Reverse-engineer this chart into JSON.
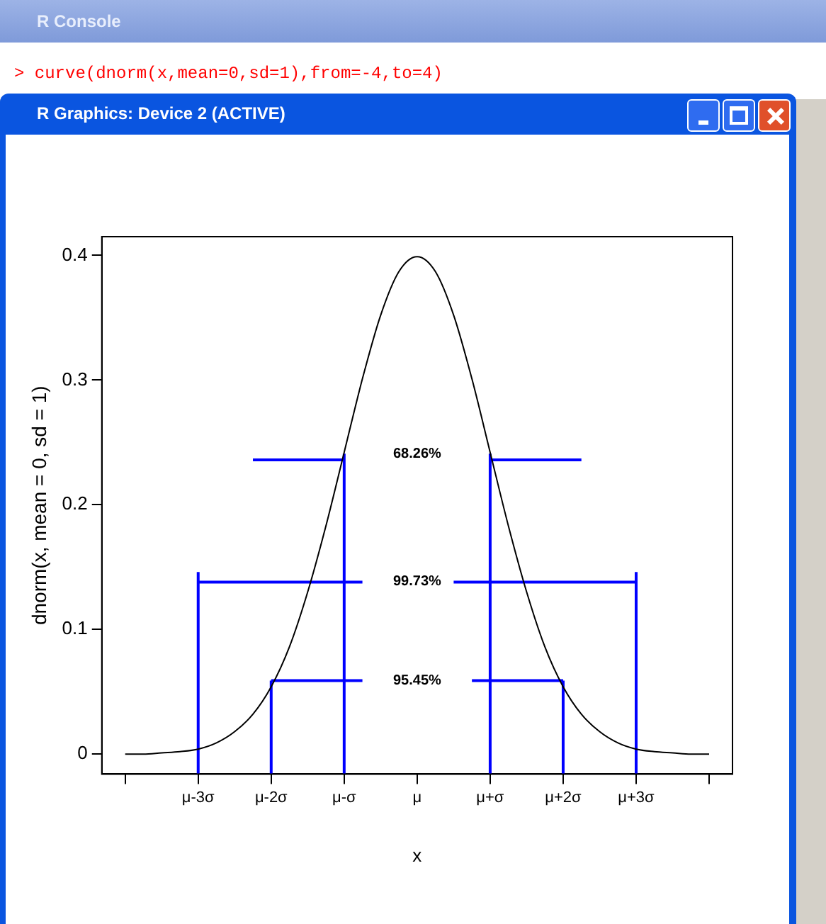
{
  "chart_data": {
    "type": "line",
    "xlabel": "x",
    "ylabel": "dnorm(x, mean = 0, sd = 1)",
    "categories": [
      null,
      null,
      null,
      null,
      "μ-3σ",
      null,
      null,
      null,
      "μ-2σ",
      null,
      null,
      null,
      "μ-σ",
      null,
      null,
      null,
      "μ",
      null,
      null,
      null,
      "μ+σ",
      null,
      null,
      null,
      "μ+2σ",
      null,
      null,
      null,
      "μ+3σ",
      null,
      null,
      null,
      null
    ],
    "ylim": [
      -0.016,
      0.415
    ],
    "yticks": [
      0,
      0.1,
      0.2,
      0.3,
      0.4
    ],
    "grid": false,
    "legend": false,
    "marker": "none",
    "line_style": "solid",
    "series": [
      {
        "color": "#000000",
        "values": [
          0,
          0,
          0.001,
          0.002,
          0.004,
          0.009,
          0.018,
          0.032,
          0.054,
          0.086,
          0.13,
          0.183,
          0.242,
          0.301,
          0.352,
          0.387,
          0.399,
          0.387,
          0.352,
          0.301,
          0.242,
          0.183,
          0.13,
          0.086,
          0.054,
          0.032,
          0.018,
          0.009,
          0.004,
          0.002,
          0.001,
          0,
          0
        ]
      },
      {
        "color": "#0000ff",
        "x": [
          "μ-3σ",
          "μ-3σ"
        ],
        "values": [
          -0.016,
          0.146
        ]
      },
      {
        "color": "#0000ff",
        "x": [
          "μ-2σ",
          "μ-2σ"
        ],
        "values": [
          -0.016,
          0.059
        ]
      },
      {
        "color": "#0000ff",
        "x": [
          "μ-σ",
          "μ-σ"
        ],
        "values": [
          -0.016,
          0.241
        ]
      },
      {
        "color": "#0000ff",
        "x": [
          "μ+σ",
          "μ+σ"
        ],
        "values": [
          -0.016,
          0.241
        ]
      },
      {
        "color": "#0000ff",
        "x": [
          "μ+2σ",
          "μ+2σ"
        ],
        "values": [
          -0.016,
          0.059
        ]
      },
      {
        "color": "#0000ff",
        "x": [
          "μ+3σ",
          "μ+3σ"
        ],
        "values": [
          -0.016,
          0.146
        ]
      },
      {
        "color": "#0000ff",
        "values": [
          null,
          null,
          null,
          null,
          null,
          null,
          null,
          0.236,
          0.236,
          0.236,
          0.236,
          0.236,
          0.236,
          null,
          null,
          null,
          null,
          null,
          null,
          null,
          null,
          null,
          null,
          null,
          null,
          null,
          null,
          null,
          null,
          null,
          null,
          null,
          null
        ]
      },
      {
        "color": "#0000ff",
        "values": [
          null,
          null,
          null,
          null,
          null,
          null,
          null,
          null,
          null,
          null,
          null,
          null,
          null,
          null,
          null,
          null,
          null,
          null,
          null,
          null,
          0.236,
          0.236,
          0.236,
          0.236,
          0.236,
          0.236,
          null,
          null,
          null,
          null,
          null,
          null,
          null
        ]
      },
      {
        "color": "#0000ff",
        "values": [
          null,
          null,
          null,
          null,
          0.138,
          0.138,
          0.138,
          0.138,
          0.138,
          0.138,
          0.138,
          0.138,
          0.138,
          0.138,
          null,
          null,
          null,
          null,
          null,
          null,
          null,
          null,
          null,
          null,
          null,
          null,
          null,
          null,
          null,
          null,
          null,
          null,
          null
        ]
      },
      {
        "color": "#0000ff",
        "values": [
          null,
          null,
          null,
          null,
          null,
          null,
          null,
          null,
          null,
          null,
          null,
          null,
          null,
          null,
          null,
          null,
          null,
          null,
          0.138,
          0.138,
          0.138,
          0.138,
          0.138,
          0.138,
          0.138,
          0.138,
          0.138,
          0.138,
          0.138,
          null,
          null,
          null,
          null
        ]
      },
      {
        "color": "#0000ff",
        "values": [
          null,
          null,
          null,
          null,
          null,
          null,
          null,
          null,
          0.059,
          0.059,
          0.059,
          0.059,
          0.059,
          0.059,
          null,
          null,
          null,
          null,
          null,
          null,
          null,
          null,
          null,
          null,
          null,
          null,
          null,
          null,
          null,
          null,
          null,
          null,
          null
        ]
      },
      {
        "color": "#0000ff",
        "values": [
          null,
          null,
          null,
          null,
          null,
          null,
          null,
          null,
          null,
          null,
          null,
          null,
          null,
          null,
          null,
          null,
          null,
          null,
          null,
          0.059,
          0.059,
          0.059,
          0.059,
          0.059,
          0.059,
          null,
          null,
          null,
          null,
          null,
          null,
          null,
          null
        ]
      }
    ],
    "annotations": [
      "R Console",
      "> curve(dnorm(x,mean=0,sd=1),from=-4,to=4)",
      "R Graphics: Device 2 (ACTIVE)",
      "68.26%",
      "99.73%",
      "95.45%"
    ]
  }
}
